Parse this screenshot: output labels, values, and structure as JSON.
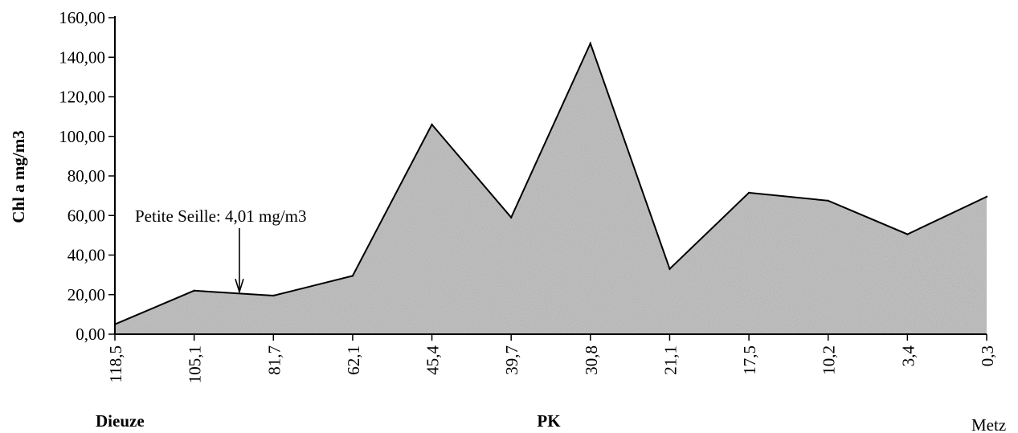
{
  "chart_data": {
    "type": "area",
    "title": "",
    "xlabel": "PK",
    "ylabel": "Chl a mg/m3",
    "categories": [
      "118,5",
      "105,1",
      "81,7",
      "62,1",
      "45,4",
      "39,7",
      "30,8",
      "21,1",
      "17,5",
      "10,2",
      "3,4",
      "0,3"
    ],
    "x_values": [
      118.5,
      105.1,
      81.7,
      62.1,
      45.4,
      39.7,
      30.8,
      21.1,
      17.5,
      10.2,
      3.4,
      0.3
    ],
    "values": [
      5.0,
      22.0,
      19.5,
      29.5,
      106.0,
      59.0,
      147.0,
      33.0,
      71.5,
      67.5,
      50.5,
      69.5
    ],
    "extra_point": {
      "after_index": 2,
      "value": 24.5
    },
    "ylim": [
      0,
      160
    ],
    "yticks": [
      "0,00",
      "20,00",
      "40,00",
      "60,00",
      "80,00",
      "100,00",
      "120,00",
      "140,00",
      "160,00"
    ],
    "ytick_values": [
      0,
      20,
      40,
      60,
      80,
      100,
      120,
      140,
      160
    ],
    "grid": false,
    "legend": "none",
    "fill_color": "#c4c4c4",
    "line_color": "#000000",
    "annotation": {
      "text": "Petite Seille: 4,01 mg/m3",
      "at_between": [
        1,
        2
      ],
      "arrow_target_value": 21.0
    },
    "x_end_labels": {
      "left": "Dieuze",
      "right": "Metz"
    }
  }
}
